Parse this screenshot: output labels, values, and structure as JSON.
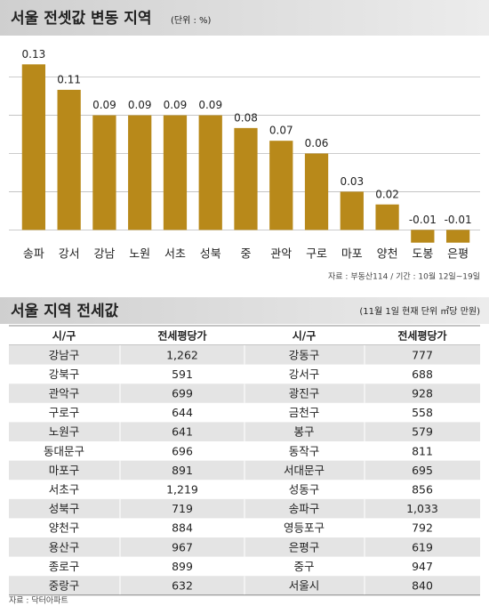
{
  "chart_data": {
    "type": "bar",
    "title": "서울 전셋값 변동 지역",
    "unit": "(단위 : %)",
    "categories": [
      "송파",
      "강서",
      "강남",
      "노원",
      "서초",
      "성북",
      "중",
      "관악",
      "구로",
      "마포",
      "양천",
      "도봉",
      "은평"
    ],
    "values": [
      0.13,
      0.11,
      0.09,
      0.09,
      0.09,
      0.09,
      0.08,
      0.07,
      0.06,
      0.03,
      0.02,
      -0.01,
      -0.01
    ],
    "color": "#b8891a",
    "ylim": [
      -0.02,
      0.14
    ],
    "grid": true,
    "grid_lines": [
      0.03,
      0.06,
      0.09,
      0.12
    ],
    "source": "자료 : 부동산114 / 기간 : 10월 12일~19일"
  },
  "table": {
    "title": "서울 지역 전세값",
    "note": "(11월 1일 현재 단위 ㎡당 만원)",
    "header": [
      "시/구",
      "전세평당가",
      "시/구",
      "전세평당가"
    ],
    "rows": [
      [
        "강남구",
        "1,262",
        "강동구",
        "777"
      ],
      [
        "강북구",
        "591",
        "강서구",
        "688"
      ],
      [
        "관악구",
        "699",
        "광진구",
        "928"
      ],
      [
        "구로구",
        "644",
        "금천구",
        "558"
      ],
      [
        "노원구",
        "641",
        "봉구",
        "579"
      ],
      [
        "동대문구",
        "696",
        "동작구",
        "811"
      ],
      [
        "마포구",
        "891",
        "서대문구",
        "695"
      ],
      [
        "서초구",
        "1,219",
        "성동구",
        "856"
      ],
      [
        "성북구",
        "719",
        "송파구",
        "1,033"
      ],
      [
        "양천구",
        "884",
        "영등포구",
        "792"
      ],
      [
        "용산구",
        "967",
        "은평구",
        "619"
      ],
      [
        "종로구",
        "899",
        "중구",
        "947"
      ],
      [
        "중랑구",
        "632",
        "서울시",
        "840"
      ]
    ],
    "source": "자료 : 닥터아파트"
  }
}
